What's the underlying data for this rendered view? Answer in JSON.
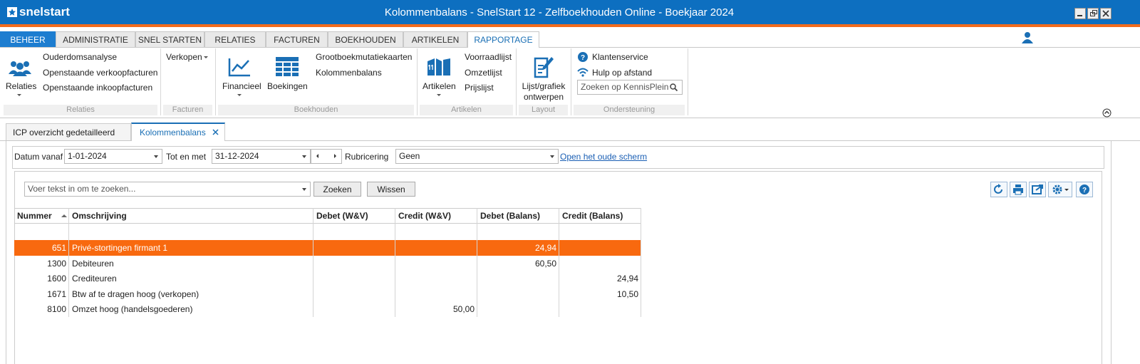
{
  "window": {
    "logo": "snelstart",
    "title": "Kolommenbalans - SnelStart 12 - Zelfboekhouden Online - Boekjaar 2024"
  },
  "menu_tabs": [
    "BEHEER",
    "ADMINISTRATIE",
    "SNEL STARTEN",
    "RELATIES",
    "FACTUREN",
    "BOEKHOUDEN",
    "ARTIKELEN",
    "RAPPORTAGE"
  ],
  "ribbon": {
    "relaties": {
      "label": "Relaties",
      "button": "Relaties",
      "items": [
        "Ouderdomsanalyse",
        "Openstaande verkoopfacturen",
        "Openstaande inkoopfacturen"
      ]
    },
    "facturen": {
      "label": "Facturen",
      "items": [
        "Verkopen"
      ]
    },
    "boekhouden": {
      "label": "Boekhouden",
      "buttons": [
        "Financieel",
        "Boekingen"
      ],
      "items": [
        "Grootboekmutatiekaarten",
        "Kolommenbalans"
      ]
    },
    "artikelen": {
      "label": "Artikelen",
      "button": "Artikelen",
      "items": [
        "Voorraadlijst",
        "Omzetlijst",
        "Prijslijst"
      ]
    },
    "layout": {
      "label": "Layout",
      "button": "Lijst/grafiek ontwerpen"
    },
    "ondersteuning": {
      "label": "Ondersteuning",
      "items": [
        "Klantenservice",
        "Hulp op afstand"
      ],
      "search": "Zoeken op KennisPlein"
    }
  },
  "doc_tabs": [
    "ICP overzicht gedetailleerd",
    "Kolommenbalans"
  ],
  "filter": {
    "from_label": "Datum vanaf",
    "from": "1-01-2024",
    "to_label": "Tot en met",
    "to": "31-12-2024",
    "group_label": "Rubricering",
    "group": "Geen",
    "link": "Open het oude scherm"
  },
  "search": {
    "placeholder": "Voer tekst in om te zoeken...",
    "search_button": "Zoeken",
    "clear_button": "Wissen"
  },
  "table": {
    "columns": [
      "Nummer",
      "Omschrijving",
      "Debet (W&V)",
      "Credit (W&V)",
      "Debet (Balans)",
      "Credit (Balans)"
    ],
    "rows": [
      [
        "651",
        "Privé-stortingen firmant 1",
        null,
        null,
        "24,94",
        null
      ],
      [
        "1300",
        "Debiteuren",
        null,
        null,
        "60,50",
        null
      ],
      [
        "1600",
        "Crediteuren",
        null,
        null,
        null,
        "24,94"
      ],
      [
        "1671",
        "Btw af te dragen hoog (verkopen)",
        null,
        null,
        null,
        "10,50"
      ],
      [
        "8100",
        "Omzet hoog (handelsgoederen)",
        null,
        "50,00",
        null,
        null
      ]
    ],
    "selected_row": 0
  }
}
